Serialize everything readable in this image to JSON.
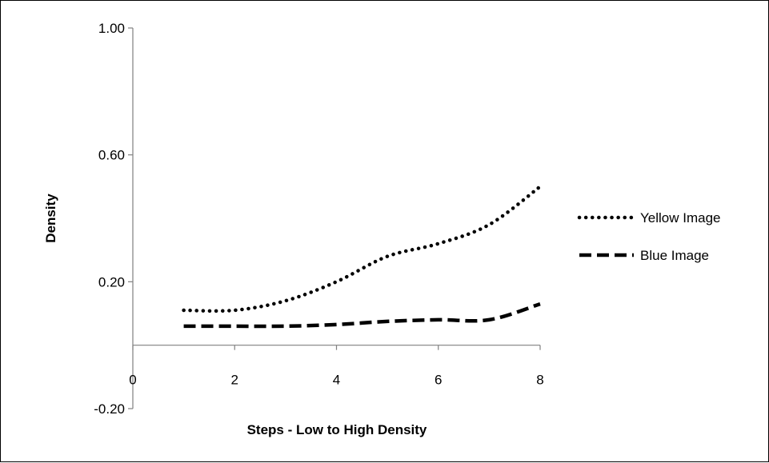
{
  "chart_data": {
    "type": "line",
    "xlabel": "Steps - Low to High Density",
    "ylabel": "Density",
    "xlim": [
      0,
      8
    ],
    "ylim": [
      -0.2,
      1.0
    ],
    "x_ticks": [
      0,
      2,
      4,
      6,
      8
    ],
    "x_tick_labels": [
      "0",
      "2",
      "4",
      "6",
      "8"
    ],
    "y_ticks": [
      -0.2,
      0.2,
      0.6,
      1.0
    ],
    "y_tick_labels": [
      "-0.20",
      "0.20",
      "0.60",
      "1.00"
    ],
    "grid": false,
    "legend_position": "right",
    "x": [
      1,
      2,
      3,
      4,
      5,
      6,
      7,
      8
    ],
    "series": [
      {
        "name": "Yellow Image",
        "style": "dotted",
        "color": "#000000",
        "values": [
          0.11,
          0.11,
          0.14,
          0.2,
          0.28,
          0.32,
          0.38,
          0.5
        ]
      },
      {
        "name": "Blue Image",
        "style": "dashed",
        "color": "#000000",
        "values": [
          0.06,
          0.06,
          0.06,
          0.065,
          0.075,
          0.08,
          0.08,
          0.13
        ]
      }
    ]
  }
}
